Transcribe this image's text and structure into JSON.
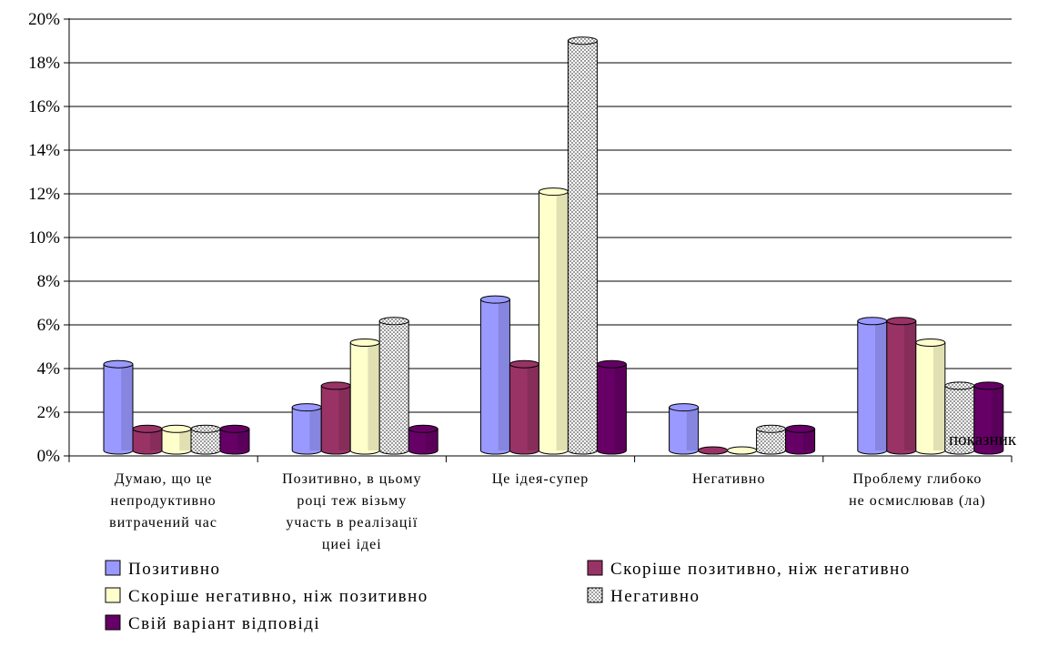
{
  "chart_data": {
    "type": "bar",
    "categories": [
      [
        "Думаю, що це",
        "непродуктивно",
        "витрачений час"
      ],
      [
        "Позитивно, в цьому",
        "році теж візьму",
        "участь в реалізації",
        "циеі ідеі"
      ],
      [
        "Це ідея-супер"
      ],
      [
        "Негативно"
      ],
      [
        "Проблему глибоко",
        "не осмислював (ла)"
      ]
    ],
    "series": [
      {
        "name": "Позитивно",
        "color": "#9999ff",
        "pattern": "solid",
        "values": [
          4,
          2,
          7,
          2,
          6
        ]
      },
      {
        "name": "Скоріше позитивно, ніж негативно",
        "color": "#993366",
        "pattern": "solid",
        "values": [
          1,
          3,
          4,
          0,
          6
        ]
      },
      {
        "name": "Скоріше негативно, ніж позитивно",
        "color": "#ffffcc",
        "pattern": "solid",
        "values": [
          1,
          5,
          12,
          0,
          5
        ]
      },
      {
        "name": "Негативно",
        "color": "#ffffff",
        "pattern": "dots",
        "values": [
          1,
          6,
          19,
          1,
          3
        ]
      },
      {
        "name": "Свій варіант відповіді",
        "color": "#660066",
        "pattern": "solid",
        "values": [
          1,
          1,
          4,
          1,
          3
        ]
      }
    ],
    "yticks": [
      "0%",
      "2%",
      "4%",
      "6%",
      "8%",
      "10%",
      "12%",
      "14%",
      "16%",
      "18%",
      "20%"
    ],
    "ylim": [
      0,
      20
    ],
    "xlabel": "показник",
    "ylabel": "",
    "grid": true,
    "legend_position": "bottom"
  }
}
